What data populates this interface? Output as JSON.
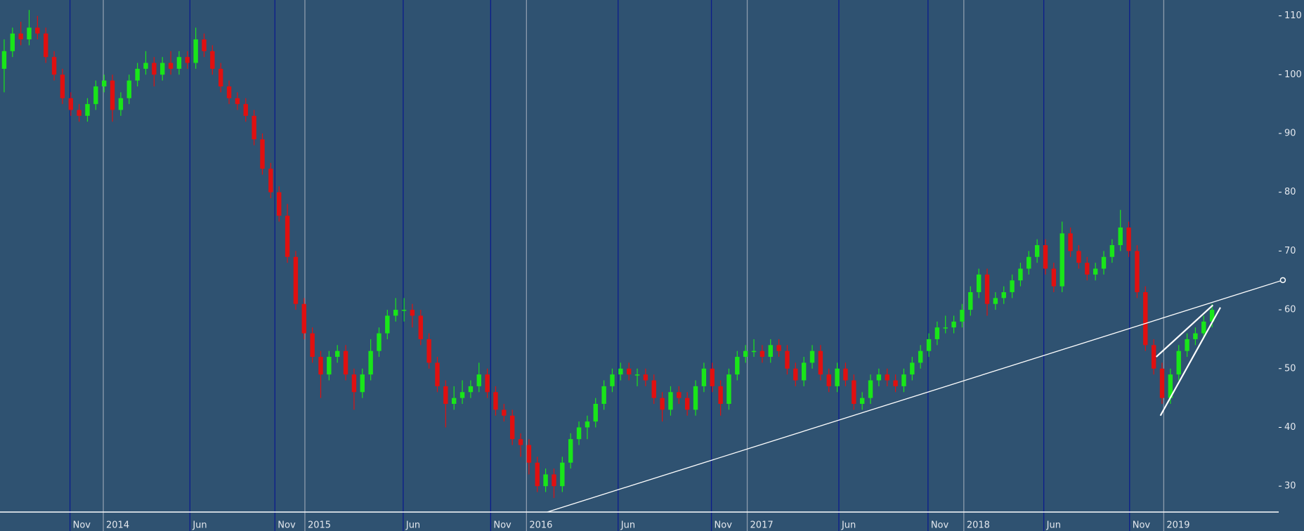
{
  "chart_data": {
    "type": "candlestick",
    "background": "#2f5271",
    "up_color": "#19e619",
    "down_color": "#e01010",
    "month_line_color": "#0b1c8c",
    "year_line_color": "#8d9cad",
    "axis_color": "#ffffff",
    "xlim": [
      -0.5,
      153.0
    ],
    "ylim": [
      25.6,
      112.7
    ],
    "yticks": [
      30,
      40,
      50,
      60,
      70,
      80,
      90,
      100,
      110
    ],
    "month_ticks": [
      {
        "value": 7.9,
        "label": "Nov"
      },
      {
        "value": 22.3,
        "label": "Jun"
      },
      {
        "value": 32.5,
        "label": "Nov"
      },
      {
        "value": 47.9,
        "label": "Jun"
      },
      {
        "value": 58.4,
        "label": "Nov"
      },
      {
        "value": 73.7,
        "label": "Jun"
      },
      {
        "value": 84.9,
        "label": "Nov"
      },
      {
        "value": 100.2,
        "label": "Jun"
      },
      {
        "value": 110.9,
        "label": "Nov"
      },
      {
        "value": 124.8,
        "label": "Jun"
      },
      {
        "value": 135.1,
        "label": "Nov"
      }
    ],
    "year_ticks": [
      {
        "value": 11.9,
        "label": "2014"
      },
      {
        "value": 36.1,
        "label": "2015"
      },
      {
        "value": 62.7,
        "label": "2016"
      },
      {
        "value": 89.2,
        "label": "2017"
      },
      {
        "value": 115.2,
        "label": "2018"
      },
      {
        "value": 139.2,
        "label": "2019"
      }
    ],
    "series": [
      {
        "values": [
          [
            101,
            106,
            97,
            104
          ],
          [
            104,
            108,
            103,
            107
          ],
          [
            107,
            109,
            105,
            106
          ],
          [
            106,
            111,
            105,
            108
          ],
          [
            108,
            110,
            106,
            107
          ],
          [
            107,
            108,
            102,
            103
          ],
          [
            103,
            104,
            99,
            100
          ],
          [
            100,
            101,
            95,
            96
          ],
          [
            96,
            97,
            93,
            94
          ],
          [
            94,
            95,
            92,
            93
          ],
          [
            93,
            96,
            92,
            95
          ],
          [
            95,
            99,
            94,
            98
          ],
          [
            98,
            100,
            97,
            99
          ],
          [
            99,
            100,
            92,
            94
          ],
          [
            94,
            97,
            93,
            96
          ],
          [
            96,
            100,
            95,
            99
          ],
          [
            99,
            102,
            98,
            101
          ],
          [
            101,
            104,
            100,
            102
          ],
          [
            102,
            103,
            98,
            100
          ],
          [
            100,
            103,
            99,
            102
          ],
          [
            102,
            104,
            100,
            101
          ],
          [
            101,
            104,
            100,
            103
          ],
          [
            103,
            104,
            101,
            102
          ],
          [
            102,
            108,
            101,
            106
          ],
          [
            106,
            107,
            103,
            104
          ],
          [
            104,
            105,
            100,
            101
          ],
          [
            101,
            102,
            97,
            98
          ],
          [
            98,
            99,
            95,
            96
          ],
          [
            96,
            97,
            94,
            95
          ],
          [
            95,
            96,
            92,
            93
          ],
          [
            93,
            94,
            88,
            89
          ],
          [
            89,
            90,
            83,
            84
          ],
          [
            84,
            85,
            79,
            80
          ],
          [
            80,
            81,
            75,
            76
          ],
          [
            76,
            78,
            68,
            69
          ],
          [
            69,
            70,
            60,
            61
          ],
          [
            61,
            62,
            55,
            56
          ],
          [
            56,
            57,
            51,
            52
          ],
          [
            52,
            53,
            45,
            49
          ],
          [
            49,
            53,
            48,
            52
          ],
          [
            52,
            54,
            51,
            53
          ],
          [
            53,
            54,
            48,
            49
          ],
          [
            49,
            50,
            43,
            46
          ],
          [
            46,
            50,
            45,
            49
          ],
          [
            49,
            55,
            48,
            53
          ],
          [
            53,
            57,
            52,
            56
          ],
          [
            56,
            60,
            55,
            59
          ],
          [
            59,
            62,
            58,
            60
          ],
          [
            60,
            62,
            58,
            60
          ],
          [
            60,
            61,
            57,
            59
          ],
          [
            59,
            60,
            54,
            55
          ],
          [
            55,
            56,
            50,
            51
          ],
          [
            51,
            52,
            46,
            47
          ],
          [
            47,
            48,
            40,
            44
          ],
          [
            44,
            47,
            43,
            45
          ],
          [
            45,
            48,
            44,
            46
          ],
          [
            46,
            48,
            45,
            47
          ],
          [
            47,
            51,
            46,
            49
          ],
          [
            49,
            50,
            45,
            46
          ],
          [
            46,
            47,
            42,
            43
          ],
          [
            43,
            44,
            41,
            42
          ],
          [
            42,
            43,
            37,
            38
          ],
          [
            38,
            39,
            35,
            37
          ],
          [
            37,
            38,
            32,
            34
          ],
          [
            34,
            35,
            29,
            30
          ],
          [
            30,
            33,
            29,
            32
          ],
          [
            32,
            33,
            28,
            30
          ],
          [
            30,
            35,
            29,
            34
          ],
          [
            34,
            39,
            33,
            38
          ],
          [
            38,
            41,
            37,
            40
          ],
          [
            40,
            42,
            38,
            41
          ],
          [
            41,
            45,
            40,
            44
          ],
          [
            44,
            48,
            43,
            47
          ],
          [
            47,
            50,
            46,
            49
          ],
          [
            49,
            51,
            48,
            50
          ],
          [
            50,
            51,
            48,
            49
          ],
          [
            49,
            50,
            47,
            49
          ],
          [
            49,
            50,
            47,
            48
          ],
          [
            48,
            49,
            44,
            45
          ],
          [
            45,
            46,
            41,
            43
          ],
          [
            43,
            47,
            42,
            46
          ],
          [
            46,
            47,
            44,
            45
          ],
          [
            45,
            46,
            42,
            43
          ],
          [
            43,
            48,
            42,
            47
          ],
          [
            47,
            51,
            46,
            50
          ],
          [
            50,
            51,
            46,
            47
          ],
          [
            47,
            48,
            42,
            44
          ],
          [
            44,
            50,
            43,
            49
          ],
          [
            49,
            53,
            48,
            52
          ],
          [
            52,
            54,
            51,
            53
          ],
          [
            53,
            55,
            52,
            53
          ],
          [
            53,
            54,
            51,
            52
          ],
          [
            52,
            55,
            51,
            54
          ],
          [
            54,
            55,
            52,
            53
          ],
          [
            53,
            54,
            49,
            50
          ],
          [
            50,
            51,
            47,
            48
          ],
          [
            48,
            52,
            47,
            51
          ],
          [
            51,
            54,
            50,
            53
          ],
          [
            53,
            54,
            48,
            49
          ],
          [
            49,
            50,
            46,
            47
          ],
          [
            47,
            51,
            46,
            50
          ],
          [
            50,
            51,
            47,
            48
          ],
          [
            48,
            49,
            43,
            44
          ],
          [
            44,
            46,
            43,
            45
          ],
          [
            45,
            49,
            44,
            48
          ],
          [
            48,
            50,
            47,
            49
          ],
          [
            49,
            50,
            47,
            48
          ],
          [
            48,
            49,
            46,
            47
          ],
          [
            47,
            50,
            46,
            49
          ],
          [
            49,
            52,
            48,
            51
          ],
          [
            51,
            54,
            50,
            53
          ],
          [
            53,
            56,
            52,
            55
          ],
          [
            55,
            58,
            54,
            57
          ],
          [
            57,
            59,
            56,
            57
          ],
          [
            57,
            59,
            56,
            58
          ],
          [
            58,
            61,
            57,
            60
          ],
          [
            60,
            64,
            59,
            63
          ],
          [
            63,
            67,
            62,
            66
          ],
          [
            66,
            67,
            59,
            61
          ],
          [
            61,
            63,
            60,
            62
          ],
          [
            62,
            64,
            61,
            63
          ],
          [
            63,
            66,
            62,
            65
          ],
          [
            65,
            68,
            64,
            67
          ],
          [
            67,
            70,
            66,
            69
          ],
          [
            69,
            72,
            68,
            71
          ],
          [
            71,
            72,
            66,
            67
          ],
          [
            67,
            68,
            63,
            64
          ],
          [
            64,
            75,
            63,
            73
          ],
          [
            73,
            74,
            69,
            70
          ],
          [
            70,
            71,
            67,
            68
          ],
          [
            68,
            69,
            65,
            66
          ],
          [
            66,
            68,
            65,
            67
          ],
          [
            67,
            70,
            66,
            69
          ],
          [
            69,
            72,
            68,
            71
          ],
          [
            71,
            77,
            70,
            74
          ],
          [
            74,
            75,
            69,
            70
          ],
          [
            70,
            71,
            62,
            63
          ],
          [
            63,
            64,
            53,
            54
          ],
          [
            54,
            55,
            49,
            50
          ],
          [
            50,
            51,
            44,
            45
          ],
          [
            45,
            50,
            44,
            49
          ],
          [
            49,
            54,
            48,
            53
          ],
          [
            53,
            56,
            52,
            55
          ],
          [
            55,
            57,
            54,
            56
          ],
          [
            56,
            59,
            55,
            58
          ],
          [
            58,
            61,
            57,
            60
          ]
        ]
      }
    ],
    "trend_lines": [
      {
        "x": [
          65.2,
          153.5
        ],
        "y": [
          25.6,
          65.05
        ],
        "color": "#ffffff",
        "marker_end": true
      },
      {
        "x": [
          138.3,
          145.1
        ],
        "y": [
          52.0,
          60.8
        ],
        "color": "#ffffff"
      },
      {
        "x": [
          138.8,
          146.0
        ],
        "y": [
          42.0,
          60.4
        ],
        "color": "#ffffff"
      }
    ]
  }
}
